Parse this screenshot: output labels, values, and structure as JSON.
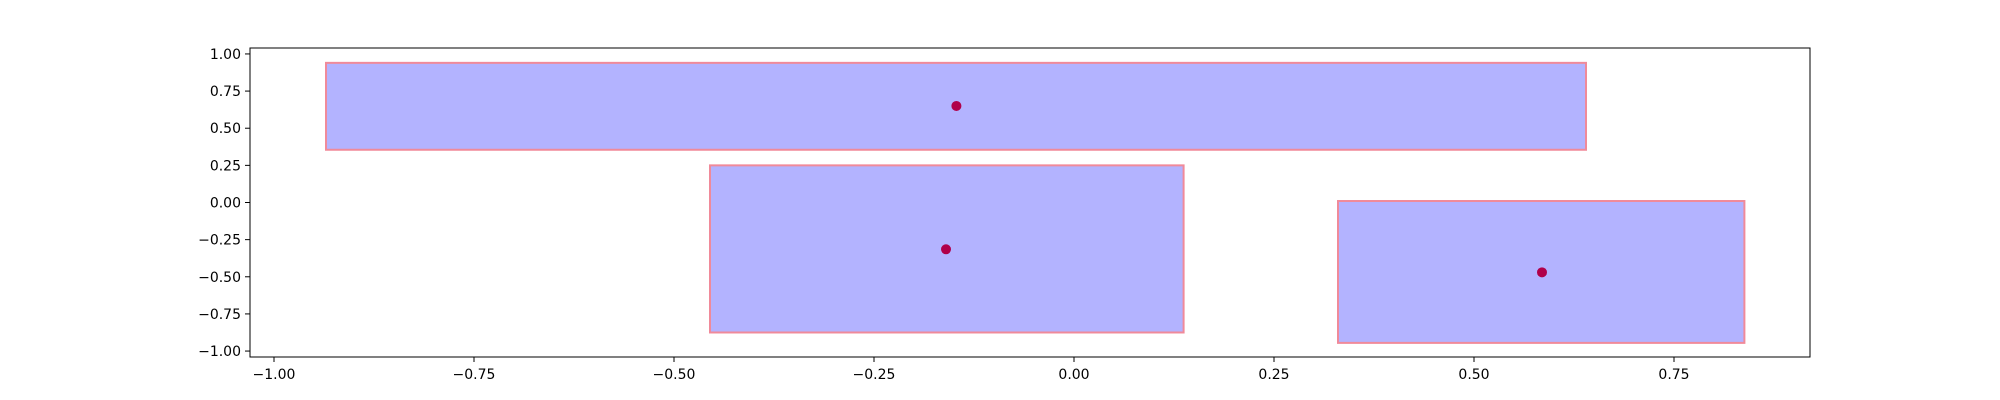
{
  "chart_data": {
    "type": "rectangles-scatter",
    "title": "",
    "xlabel": "",
    "ylabel": "",
    "xlim": [
      -1.03,
      0.92
    ],
    "ylim": [
      -1.04,
      1.04
    ],
    "grid": false,
    "x_ticks": [
      {
        "value": -1.0,
        "label": "−1.00"
      },
      {
        "value": -0.75,
        "label": "−0.75"
      },
      {
        "value": -0.5,
        "label": "−0.50"
      },
      {
        "value": -0.25,
        "label": "−0.25"
      },
      {
        "value": 0.0,
        "label": "0.00"
      },
      {
        "value": 0.25,
        "label": "0.25"
      },
      {
        "value": 0.5,
        "label": "0.50"
      },
      {
        "value": 0.75,
        "label": "0.75"
      }
    ],
    "y_ticks": [
      {
        "value": -1.0,
        "label": "−1.00"
      },
      {
        "value": -0.75,
        "label": "−0.75"
      },
      {
        "value": -0.5,
        "label": "−0.50"
      },
      {
        "value": -0.25,
        "label": "−0.25"
      },
      {
        "value": 0.0,
        "label": "0.00"
      },
      {
        "value": 0.25,
        "label": "0.25"
      },
      {
        "value": 0.5,
        "label": "0.50"
      },
      {
        "value": 0.75,
        "label": "0.75"
      },
      {
        "value": 1.0,
        "label": "1.00"
      }
    ],
    "rectangles": [
      {
        "x0": -0.935,
        "x1": 0.64,
        "y0": 0.355,
        "y1": 0.94
      },
      {
        "x0": -0.455,
        "x1": 0.137,
        "y0": -0.875,
        "y1": 0.25
      },
      {
        "x0": 0.33,
        "x1": 0.838,
        "y0": -0.945,
        "y1": 0.01
      }
    ],
    "points": [
      {
        "x": -0.147,
        "y": 0.65
      },
      {
        "x": -0.16,
        "y": -0.315
      },
      {
        "x": 0.585,
        "y": -0.47
      }
    ],
    "colors": {
      "rect_fill": "#b3b3ff",
      "rect_edge": "#f08a9a",
      "point": "#b0004a",
      "axis": "#000000"
    }
  }
}
